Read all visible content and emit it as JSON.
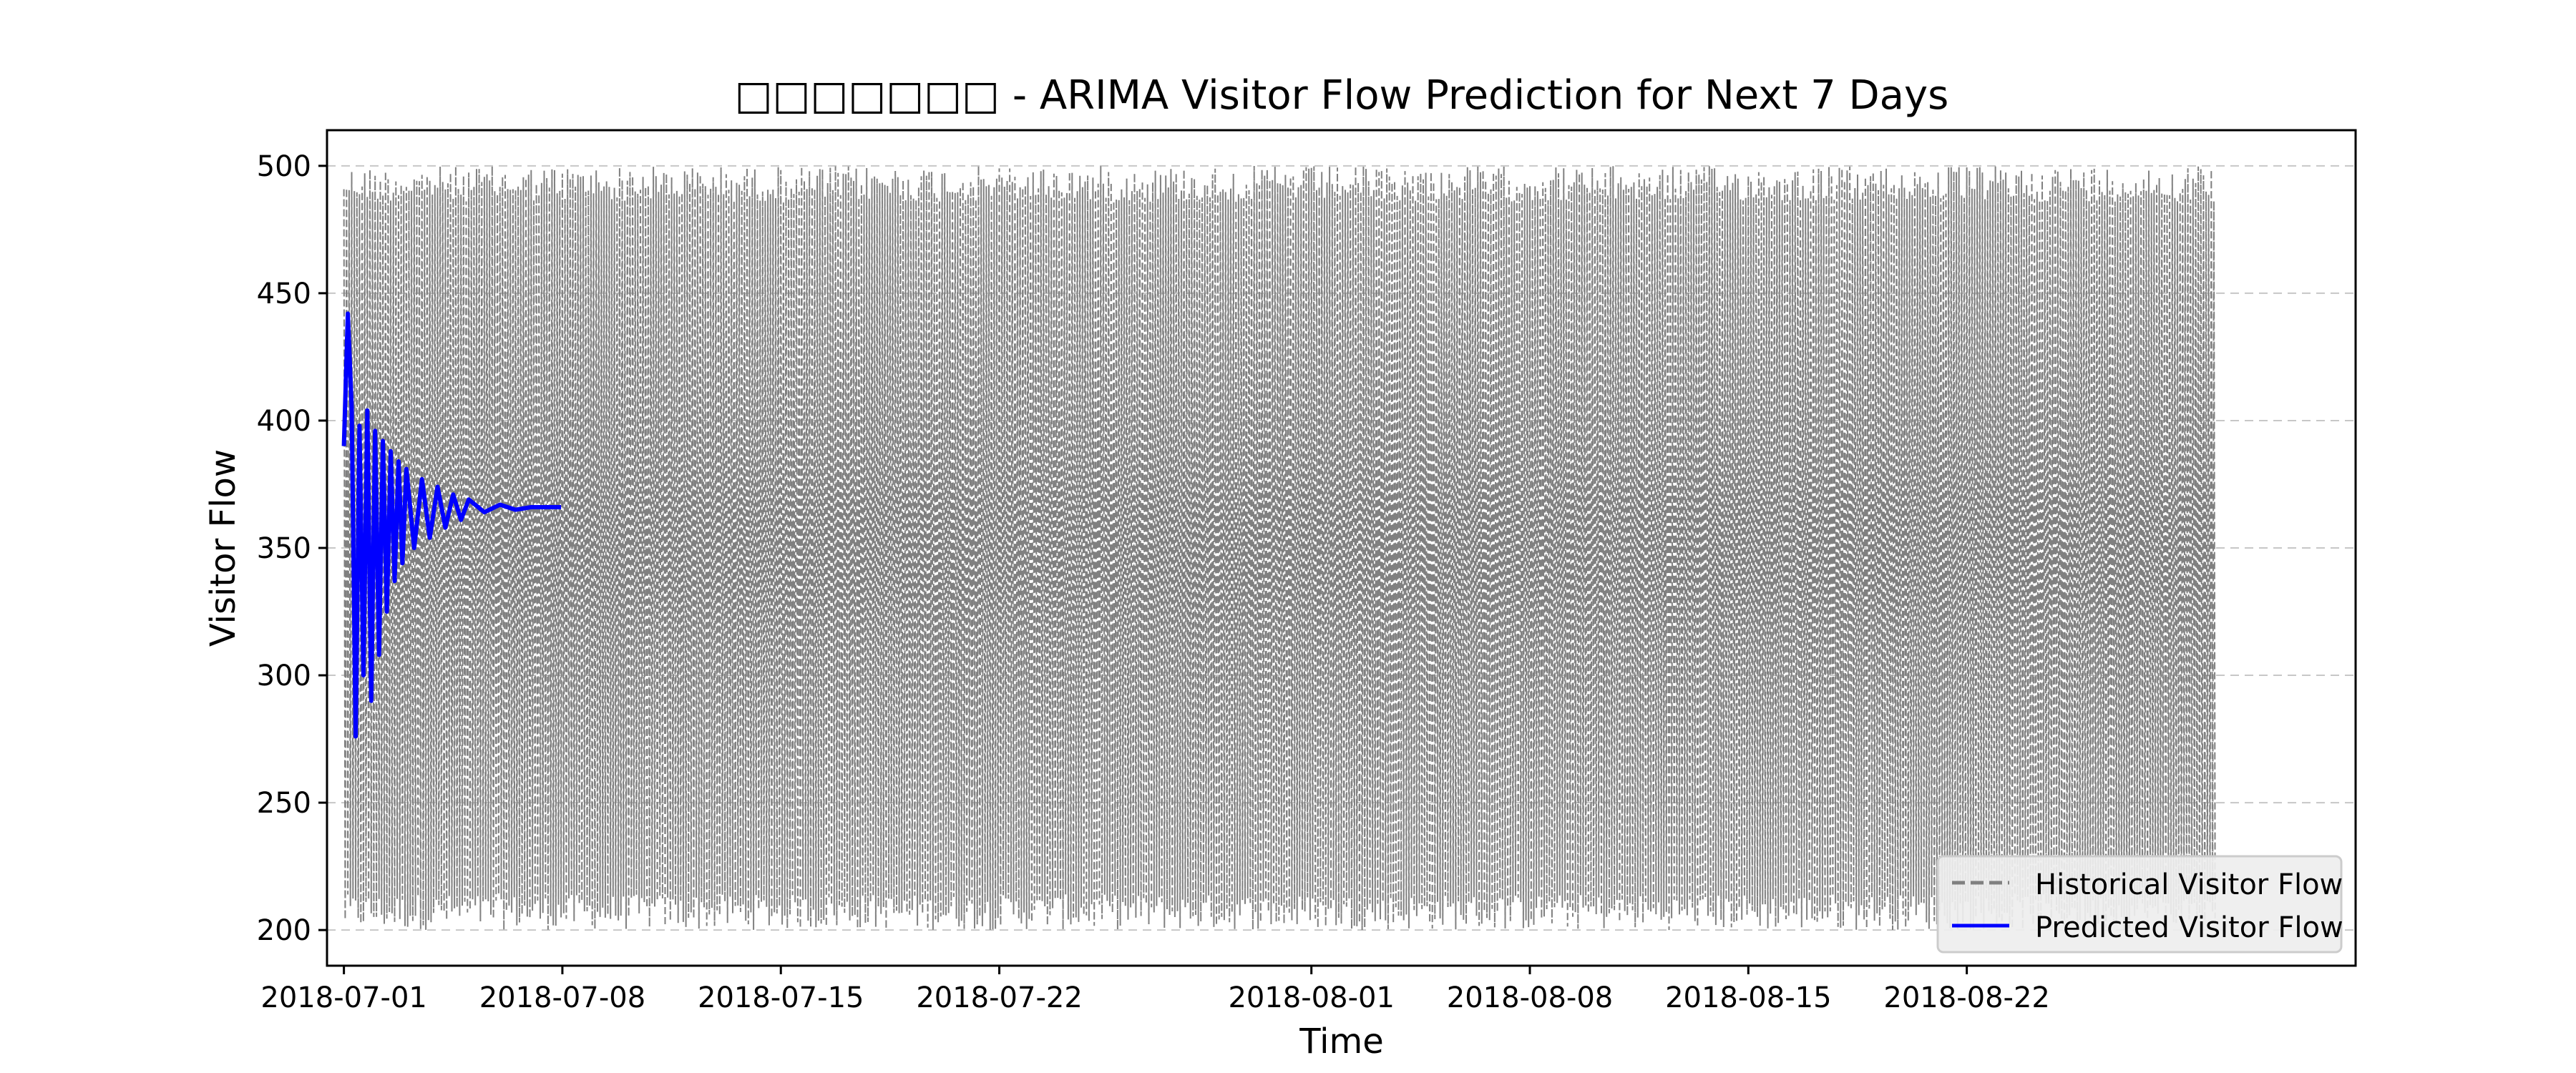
{
  "chart_data": {
    "type": "line",
    "title": "□□□□□□□ - ARIMA Visitor Flow Prediction for Next 7 Days",
    "xlabel": "Time",
    "ylabel": "Visitor Flow",
    "x_axis": {
      "type": "date",
      "range": [
        "2018-06-30T11:00",
        "2018-09-03T11:00"
      ],
      "ticks": [
        "2018-07-01",
        "2018-07-08",
        "2018-07-15",
        "2018-07-22",
        "2018-08-01",
        "2018-08-08",
        "2018-08-15",
        "2018-08-22"
      ]
    },
    "y_axis": {
      "range": [
        186,
        514
      ],
      "ticks": [
        200,
        250,
        300,
        350,
        400,
        450,
        500
      ]
    },
    "grid": "horizontal-dashed",
    "legend": "lower-right",
    "series": [
      {
        "name": "Historical Visitor Flow",
        "color": "#808080",
        "style": "dashed",
        "start": "2018-07-01T00:00",
        "end": "2018-08-29T23:00",
        "frequency": "hourly",
        "min": 200,
        "max": 500
      },
      {
        "name": "Predicted Visitor Flow",
        "color": "#0000ff",
        "style": "solid",
        "points": [
          [
            "2018-07-01T00:00",
            390
          ],
          [
            "2018-07-01T03:00",
            442
          ],
          [
            "2018-07-01T06:00",
            405
          ],
          [
            "2018-07-01T09:00",
            276
          ],
          [
            "2018-07-01T12:00",
            398
          ],
          [
            "2018-07-01T15:00",
            300
          ],
          [
            "2018-07-01T18:00",
            404
          ],
          [
            "2018-07-01T21:00",
            290
          ],
          [
            "2018-07-02T00:00",
            396
          ],
          [
            "2018-07-02T03:00",
            308
          ],
          [
            "2018-07-02T06:00",
            392
          ],
          [
            "2018-07-02T09:00",
            325
          ],
          [
            "2018-07-02T12:00",
            388
          ],
          [
            "2018-07-02T15:00",
            337
          ],
          [
            "2018-07-02T18:00",
            384
          ],
          [
            "2018-07-02T21:00",
            344
          ],
          [
            "2018-07-03T00:00",
            381
          ],
          [
            "2018-07-03T06:00",
            350
          ],
          [
            "2018-07-03T12:00",
            377
          ],
          [
            "2018-07-03T18:00",
            354
          ],
          [
            "2018-07-04T00:00",
            374
          ],
          [
            "2018-07-04T06:00",
            358
          ],
          [
            "2018-07-04T12:00",
            371
          ],
          [
            "2018-07-04T18:00",
            361
          ],
          [
            "2018-07-05T00:00",
            369
          ],
          [
            "2018-07-05T12:00",
            364
          ],
          [
            "2018-07-06T00:00",
            367
          ],
          [
            "2018-07-06T12:00",
            365
          ],
          [
            "2018-07-07T00:00",
            366
          ],
          [
            "2018-07-07T23:00",
            366
          ]
        ]
      }
    ]
  }
}
